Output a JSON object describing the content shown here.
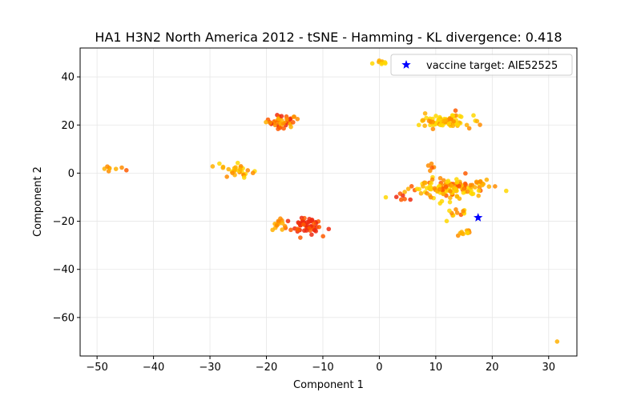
{
  "chart_data": {
    "type": "scatter",
    "title": "HA1 H3N2 North America 2012 - tSNE - Hamming - KL divergence: 0.418",
    "xlabel": "Component 1",
    "ylabel": "Component 2",
    "xlim": [
      -53,
      35
    ],
    "ylim": [
      -76,
      52
    ],
    "xticks": [
      -50,
      -40,
      -30,
      -20,
      -10,
      0,
      10,
      20,
      30
    ],
    "yticks": [
      -60,
      -40,
      -20,
      0,
      20,
      40
    ],
    "xtick_labels": [
      "−50",
      "−40",
      "−30",
      "−20",
      "−10",
      "0",
      "10",
      "20",
      "30"
    ],
    "ytick_labels": [
      "−60",
      "−40",
      "−20",
      "0",
      "20",
      "40"
    ],
    "grid": true,
    "legend_position": "top-right",
    "colors": {
      "yellow": "#ffd700",
      "amber": "#ffb000",
      "orange": "#ff8c00",
      "red_orange": "#ff5a00",
      "red": "#ee2a10",
      "vaccine": "#0000ff"
    },
    "clusters": [
      {
        "cx": 0.2,
        "cy": 46,
        "sx": 0.7,
        "sy": 0.8,
        "n": 8,
        "palette": [
          "yellow",
          "amber"
        ]
      },
      {
        "cx": -17.5,
        "cy": 21.5,
        "sx": 1.6,
        "sy": 1.3,
        "n": 45,
        "palette": [
          "red",
          "red_orange",
          "orange",
          "amber"
        ]
      },
      {
        "cx": 11.5,
        "cy": 21.5,
        "sx": 2.2,
        "sy": 1.3,
        "n": 80,
        "palette": [
          "yellow",
          "yellow",
          "amber",
          "orange"
        ]
      },
      {
        "cx": -48,
        "cy": 2,
        "sx": 0.9,
        "sy": 1.3,
        "n": 7,
        "palette": [
          "orange",
          "amber"
        ]
      },
      {
        "cx": -25,
        "cy": 1.3,
        "sx": 1.3,
        "sy": 1.3,
        "n": 30,
        "palette": [
          "yellow",
          "amber",
          "orange"
        ]
      },
      {
        "cx": 12,
        "cy": -6.5,
        "sx": 3.2,
        "sy": 2.3,
        "n": 130,
        "palette": [
          "yellow",
          "yellow",
          "amber",
          "orange",
          "red_orange"
        ]
      },
      {
        "cx": 3.8,
        "cy": -10,
        "sx": 0.5,
        "sy": 0.7,
        "n": 5,
        "palette": [
          "red",
          "red_orange"
        ]
      },
      {
        "cx": 13.2,
        "cy": -16.5,
        "sx": 1.2,
        "sy": 1.2,
        "n": 12,
        "palette": [
          "orange",
          "red_orange",
          "yellow"
        ]
      },
      {
        "cx": 14.8,
        "cy": -24.5,
        "sx": 0.9,
        "sy": 1.0,
        "n": 12,
        "palette": [
          "amber",
          "yellow",
          "orange"
        ]
      },
      {
        "cx": -13,
        "cy": -22,
        "sx": 1.7,
        "sy": 1.6,
        "n": 55,
        "palette": [
          "red",
          "red_orange",
          "red"
        ]
      },
      {
        "cx": -18,
        "cy": -21.5,
        "sx": 0.8,
        "sy": 1.1,
        "n": 12,
        "palette": [
          "orange",
          "amber"
        ]
      },
      {
        "cx": 9.5,
        "cy": 3.5,
        "sx": 0.4,
        "sy": 0.6,
        "n": 4,
        "palette": [
          "red_orange",
          "orange"
        ]
      },
      {
        "cx": 17.8,
        "cy": -4.5,
        "sx": 0.8,
        "sy": 0.8,
        "n": 5,
        "palette": [
          "orange",
          "amber"
        ]
      }
    ],
    "points": [
      {
        "x": -44.8,
        "y": 1.2,
        "c": "red_orange"
      },
      {
        "x": 31.5,
        "y": -70,
        "c": "amber"
      },
      {
        "x": 20.5,
        "y": -5.5,
        "c": "orange"
      },
      {
        "x": 5.5,
        "y": -11,
        "c": "red"
      },
      {
        "x": 7,
        "y": 20,
        "c": "yellow"
      },
      {
        "x": 15.5,
        "y": 20,
        "c": "amber"
      },
      {
        "x": 13.5,
        "y": 26,
        "c": "red_orange"
      },
      {
        "x": 9,
        "y": 1,
        "c": "orange"
      },
      {
        "x": -27,
        "y": -1.5,
        "c": "orange"
      }
    ],
    "vaccine": {
      "x": 17.5,
      "y": -18.5,
      "label": "vaccine target: AIE52525"
    }
  }
}
